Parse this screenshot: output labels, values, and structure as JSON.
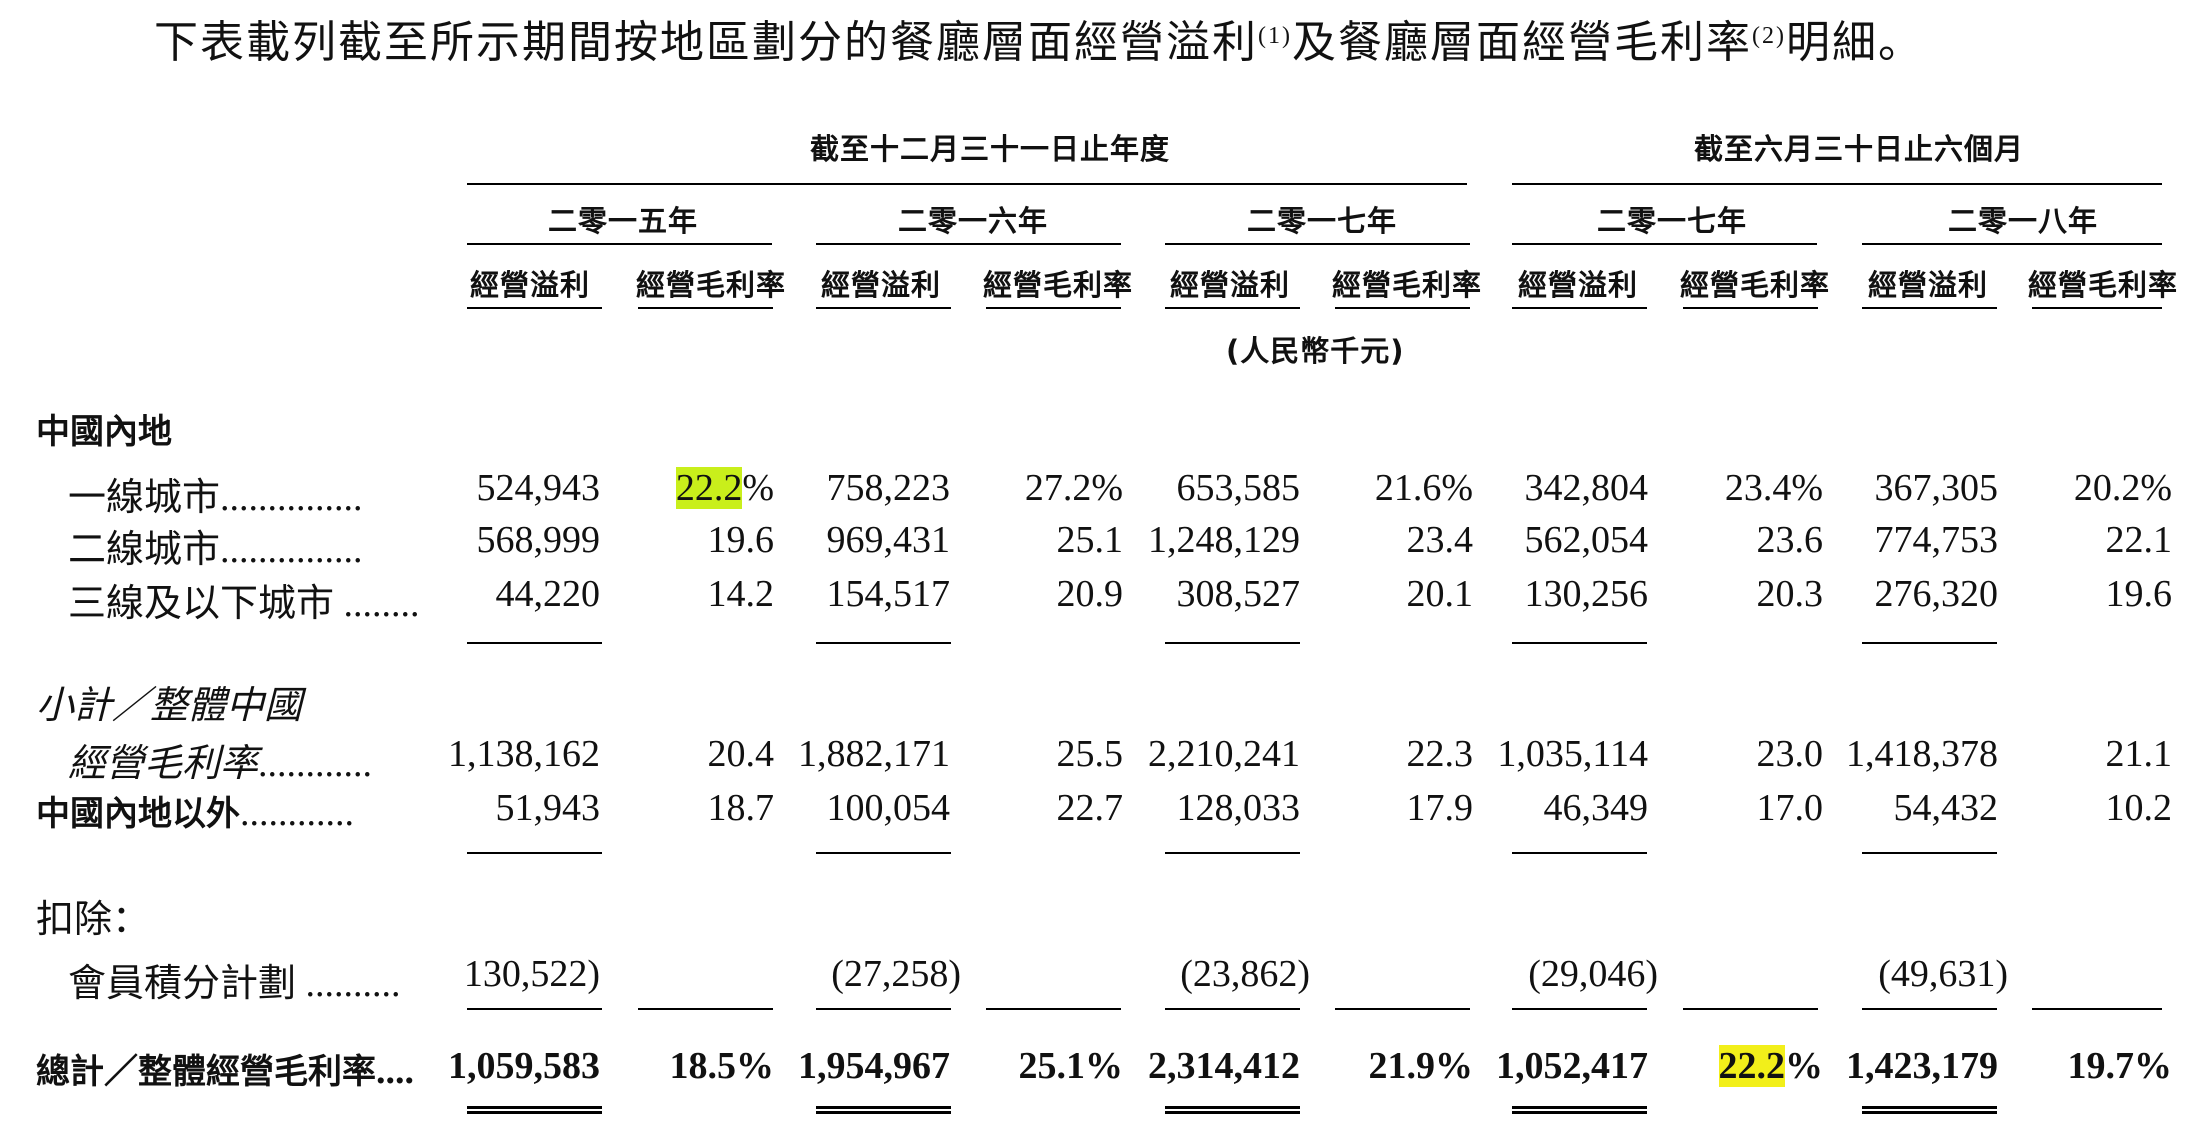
{
  "intro": {
    "text1": "下表載列截至所示期間按地區劃分的餐廳層面經營溢利",
    "note1": "(1)",
    "text2": "及餐廳層面經營毛利率",
    "note2": "(2)",
    "text3": "明細。"
  },
  "headers": {
    "period_year": "截至十二月三十一日止年度",
    "period_half": "截至六月三十日止六個月",
    "years": [
      "二零一五年",
      "二零一六年",
      "二零一七年",
      "二零一七年",
      "二零一八年"
    ],
    "col_profit": "經營溢利",
    "col_margin": "經營毛利率",
    "unit": "(人民幣千元)"
  },
  "section_mainland": "中國內地",
  "rows": [
    {
      "label": "一線城市",
      "dots": "...............",
      "values": [
        "524,943",
        "22.2%",
        "758,223",
        "27.2%",
        "653,585",
        "21.6%",
        "342,804",
        "23.4%",
        "367,305",
        "20.2%"
      ]
    },
    {
      "label": "二線城市",
      "dots": "...............",
      "values": [
        "568,999",
        "19.6",
        "969,431",
        "25.1",
        "1,248,129",
        "23.4",
        "562,054",
        "23.6",
        "774,753",
        "22.1"
      ]
    },
    {
      "label": "三線及以下城市",
      "dots": "........",
      "values": [
        "44,220",
        "14.2",
        "154,517",
        "20.9",
        "308,527",
        "20.1",
        "130,256",
        "20.3",
        "276,320",
        "19.6"
      ]
    }
  ],
  "subtotal": {
    "label1": "小計／整體中國",
    "label2": "經營毛利率",
    "dots": "............",
    "values": [
      "1,138,162",
      "20.4",
      "1,882,171",
      "25.5",
      "2,210,241",
      "22.3",
      "1,035,114",
      "23.0",
      "1,418,378",
      "21.1"
    ]
  },
  "outside": {
    "label": "中國內地以外",
    "dots": "............",
    "values": [
      "51,943",
      "18.7",
      "100,054",
      "22.7",
      "128,033",
      "17.9",
      "46,349",
      "17.0",
      "54,432",
      "10.2"
    ]
  },
  "deduct": {
    "label": "扣除：",
    "item_label": "會員積分計劃",
    "dots": "..........",
    "values": [
      "130,522)",
      "(27,258)",
      "(23,862)",
      "(29,046)",
      "(49,631)"
    ]
  },
  "total": {
    "label": "總計／整體經營毛利率",
    "dots": "....",
    "values": [
      "1,059,583",
      "18.5%",
      "1,954,967",
      "25.1%",
      "2,314,412",
      "21.9%",
      "1,052,417",
      "22.2%",
      "1,423,179",
      "19.7%"
    ]
  },
  "colors": {
    "highlight_green": "#c9ef1b",
    "highlight_yellow": "#f2ef1a"
  }
}
